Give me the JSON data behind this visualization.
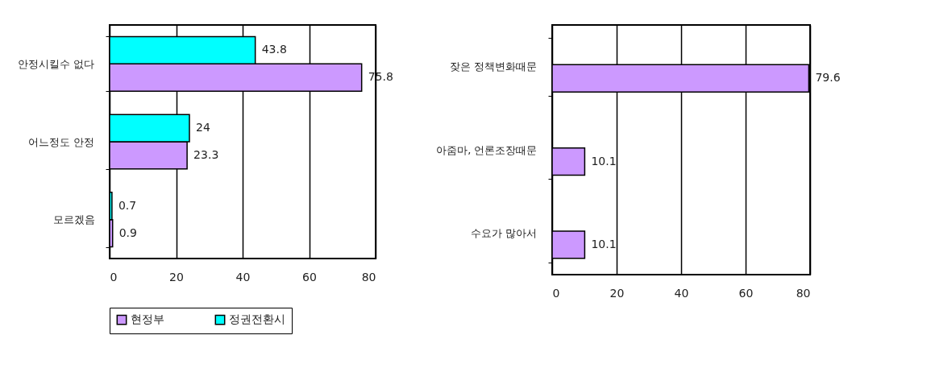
{
  "chart_data": [
    {
      "type": "bar",
      "orientation": "horizontal",
      "categories": [
        "안정시킬수 없다",
        "어느정도 안정",
        "모르겠음"
      ],
      "series": [
        {
          "name": "현정부",
          "color": "#cc99ff",
          "values": [
            75.8,
            23.3,
            0.9
          ]
        },
        {
          "name": "정권전환시",
          "color": "#00ffff",
          "values": [
            43.8,
            24,
            0.7
          ]
        }
      ],
      "xlim": [
        0,
        80
      ],
      "xticks": [
        0,
        20,
        40,
        60,
        80
      ],
      "grid": "x",
      "legend": "bottom",
      "data_labels": true
    },
    {
      "type": "bar",
      "orientation": "horizontal",
      "categories": [
        "잦은 정책변화때문",
        "아줌마, 언론조장때문",
        "수요가 많아서"
      ],
      "series": [
        {
          "color": "#cc99ff",
          "values": [
            79.6,
            10.1,
            10.1
          ]
        }
      ],
      "xlim": [
        0,
        80
      ],
      "xticks": [
        0,
        20,
        40,
        60,
        80
      ],
      "grid": "x",
      "data_labels": true
    }
  ]
}
